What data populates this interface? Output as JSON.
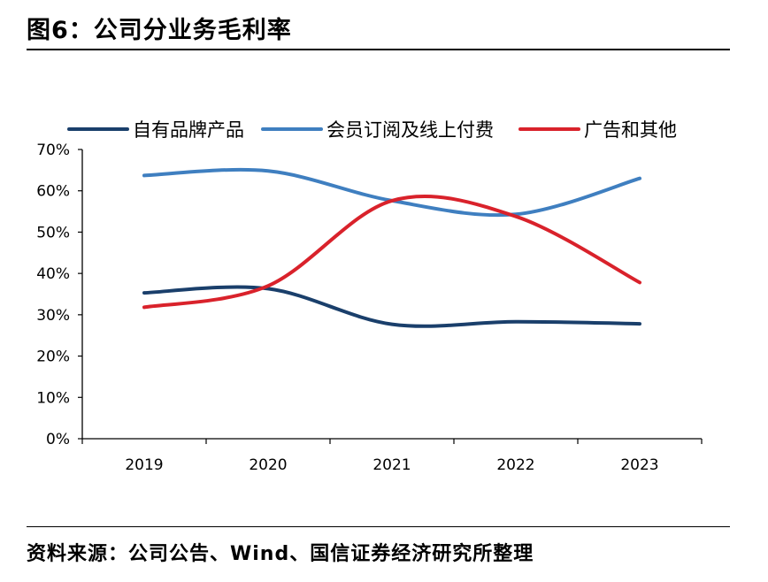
{
  "figure": {
    "title": "图6：公司分业务毛利率",
    "source": "资料来源：公司公告、Wind、国信证券经济研究所整理"
  },
  "colors": {
    "series_1": "#1a3f6b",
    "series_2": "#3f7fc0",
    "series_3": "#d9222b",
    "axis": "#000000"
  },
  "chart_data": {
    "type": "line",
    "title": "",
    "xlabel": "",
    "ylabel": "",
    "x": [
      "2019",
      "2020",
      "2021",
      "2022",
      "2023"
    ],
    "ylim": [
      0,
      70
    ],
    "y_ticks": [
      "0%",
      "10%",
      "20%",
      "30%",
      "40%",
      "50%",
      "60%",
      "70%"
    ],
    "y_tick_values": [
      0,
      10,
      20,
      30,
      40,
      50,
      60,
      70
    ],
    "grid": false,
    "smooth": true,
    "legend_position": "top",
    "series": [
      {
        "name": "自有品牌产品",
        "values": [
          35.3,
          36.3,
          27.7,
          28.3,
          27.8
        ]
      },
      {
        "name": "会员订阅及线上付费",
        "values": [
          63.7,
          64.8,
          57.6,
          54.3,
          63.0
        ]
      },
      {
        "name": "广告和其他",
        "values": [
          31.8,
          37.0,
          57.6,
          53.8,
          37.8
        ]
      }
    ]
  }
}
